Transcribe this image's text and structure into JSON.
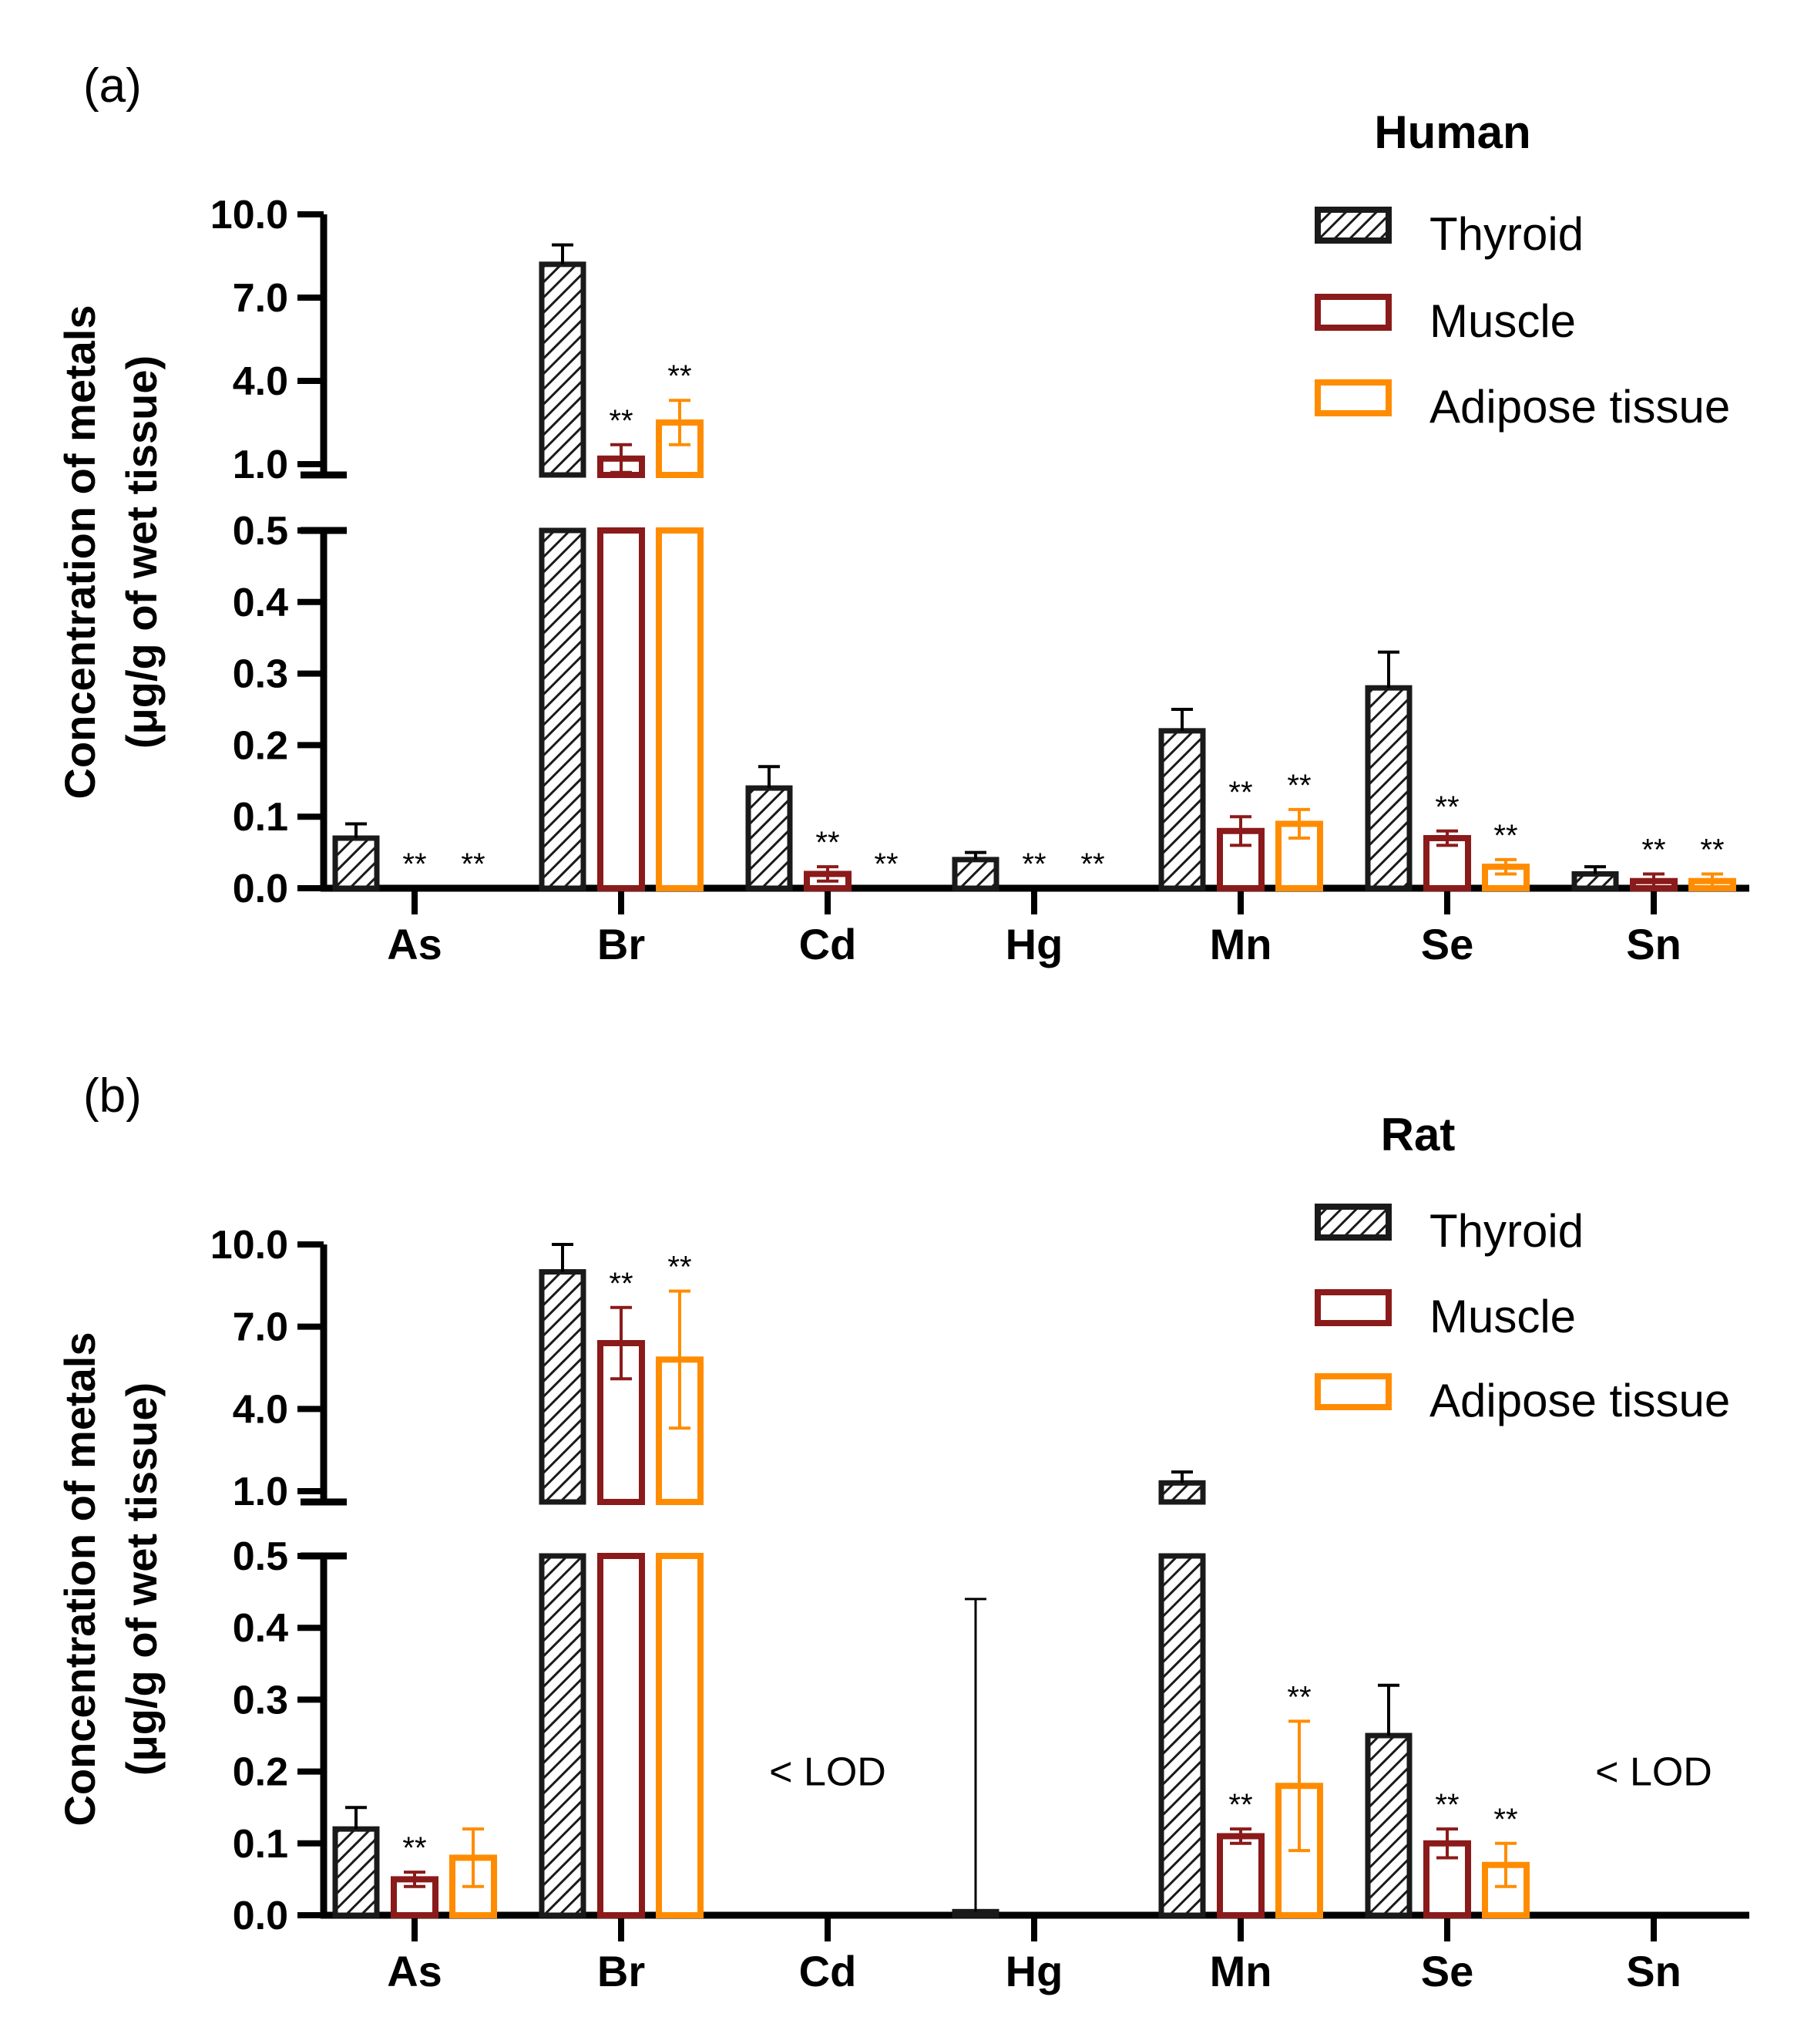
{
  "colors": {
    "thyroid": "#1a1a1a",
    "muscle": "#8b1a1a",
    "adipose": "#ff8c00"
  },
  "chart_data": [
    {
      "type": "bar",
      "panel_label": "(a)",
      "title": "Human",
      "ylabel_line1": "Concentration of metals",
      "ylabel_line2": "(μg/g of wet tissue)",
      "categories": [
        "As",
        "Br",
        "Cd",
        "Hg",
        "Mn",
        "Se",
        "Sn"
      ],
      "y_broken_axis": {
        "lower_range": [
          0,
          0.5
        ],
        "upper_range": [
          1.0,
          10.0
        ]
      },
      "lower_ticks": [
        "0.0",
        "0.1",
        "0.2",
        "0.3",
        "0.4",
        "0.5"
      ],
      "upper_ticks": [
        "1.0",
        "4.0",
        "7.0",
        "10.0"
      ],
      "series": [
        {
          "name": "Thyroid",
          "values": [
            0.07,
            8.2,
            0.14,
            0.04,
            0.22,
            0.28,
            0.02
          ],
          "errors": [
            0.02,
            0.7,
            0.03,
            0.01,
            0.03,
            0.05,
            0.01
          ]
        },
        {
          "name": "Muscle",
          "values": [
            0.0,
            1.2,
            0.02,
            0.0,
            0.08,
            0.07,
            0.01
          ],
          "errors": [
            0,
            0.5,
            0.01,
            0,
            0.02,
            0.01,
            0.01
          ]
        },
        {
          "name": "Adipose tissue",
          "values": [
            0.0,
            2.5,
            0.0,
            0.0,
            0.09,
            0.03,
            0.01
          ],
          "errors": [
            0,
            0.8,
            0,
            0,
            0.02,
            0.01,
            0.01
          ]
        }
      ],
      "significance": [
        {
          "category": "As",
          "series": "Muscle",
          "label": "**"
        },
        {
          "category": "As",
          "series": "Adipose tissue",
          "label": "**"
        },
        {
          "category": "Br",
          "series": "Muscle",
          "label": "**"
        },
        {
          "category": "Br",
          "series": "Adipose tissue",
          "label": "**"
        },
        {
          "category": "Cd",
          "series": "Muscle",
          "label": "**"
        },
        {
          "category": "Cd",
          "series": "Adipose tissue",
          "label": "**"
        },
        {
          "category": "Hg",
          "series": "Muscle",
          "label": "**"
        },
        {
          "category": "Hg",
          "series": "Adipose tissue",
          "label": "**"
        },
        {
          "category": "Mn",
          "series": "Muscle",
          "label": "**"
        },
        {
          "category": "Mn",
          "series": "Adipose tissue",
          "label": "**"
        },
        {
          "category": "Se",
          "series": "Muscle",
          "label": "**"
        },
        {
          "category": "Se",
          "series": "Adipose tissue",
          "label": "**"
        },
        {
          "category": "Sn",
          "series": "Muscle",
          "label": "**"
        },
        {
          "category": "Sn",
          "series": "Adipose tissue",
          "label": "**"
        }
      ],
      "annotations": [],
      "legend": [
        "Thyroid",
        "Muscle",
        "Adipose tissue"
      ]
    },
    {
      "type": "bar",
      "panel_label": "(b)",
      "title": "Rat",
      "ylabel_line1": "Concentration of metals",
      "ylabel_line2": "(μg/g of wet tissue)",
      "categories": [
        "As",
        "Br",
        "Cd",
        "Hg",
        "Mn",
        "Se",
        "Sn"
      ],
      "y_broken_axis": {
        "lower_range": [
          0,
          0.5
        ],
        "upper_range": [
          1.0,
          10.0
        ]
      },
      "lower_ticks": [
        "0.0",
        "0.1",
        "0.2",
        "0.3",
        "0.4",
        "0.5"
      ],
      "upper_ticks": [
        "1.0",
        "4.0",
        "7.0",
        "10.0"
      ],
      "series": [
        {
          "name": "Thyroid",
          "values": [
            0.12,
            9.0,
            null,
            0.005,
            1.3,
            0.25,
            null
          ],
          "errors": [
            0.03,
            1.0,
            null,
            0.435,
            0.4,
            0.07,
            null
          ]
        },
        {
          "name": "Muscle",
          "values": [
            0.05,
            6.4,
            null,
            null,
            0.11,
            0.1,
            null
          ],
          "errors": [
            0.01,
            1.3,
            null,
            null,
            0.01,
            0.02,
            null
          ]
        },
        {
          "name": "Adipose tissue",
          "values": [
            0.08,
            5.8,
            null,
            null,
            0.18,
            0.07,
            null
          ],
          "errors": [
            0.04,
            2.5,
            null,
            null,
            0.09,
            0.03,
            null
          ]
        }
      ],
      "significance": [
        {
          "category": "As",
          "series": "Muscle",
          "label": "**"
        },
        {
          "category": "Br",
          "series": "Muscle",
          "label": "**"
        },
        {
          "category": "Br",
          "series": "Adipose tissue",
          "label": "**"
        },
        {
          "category": "Mn",
          "series": "Muscle",
          "label": "**"
        },
        {
          "category": "Mn",
          "series": "Adipose tissue",
          "label": "**"
        },
        {
          "category": "Se",
          "series": "Muscle",
          "label": "**"
        },
        {
          "category": "Se",
          "series": "Adipose tissue",
          "label": "**"
        }
      ],
      "annotations": [
        {
          "category": "Cd",
          "text": "< LOD",
          "y": 0.2
        },
        {
          "category": "Sn",
          "text": "< LOD",
          "y": 0.2
        }
      ],
      "legend": [
        "Thyroid",
        "Muscle",
        "Adipose tissue"
      ]
    }
  ]
}
